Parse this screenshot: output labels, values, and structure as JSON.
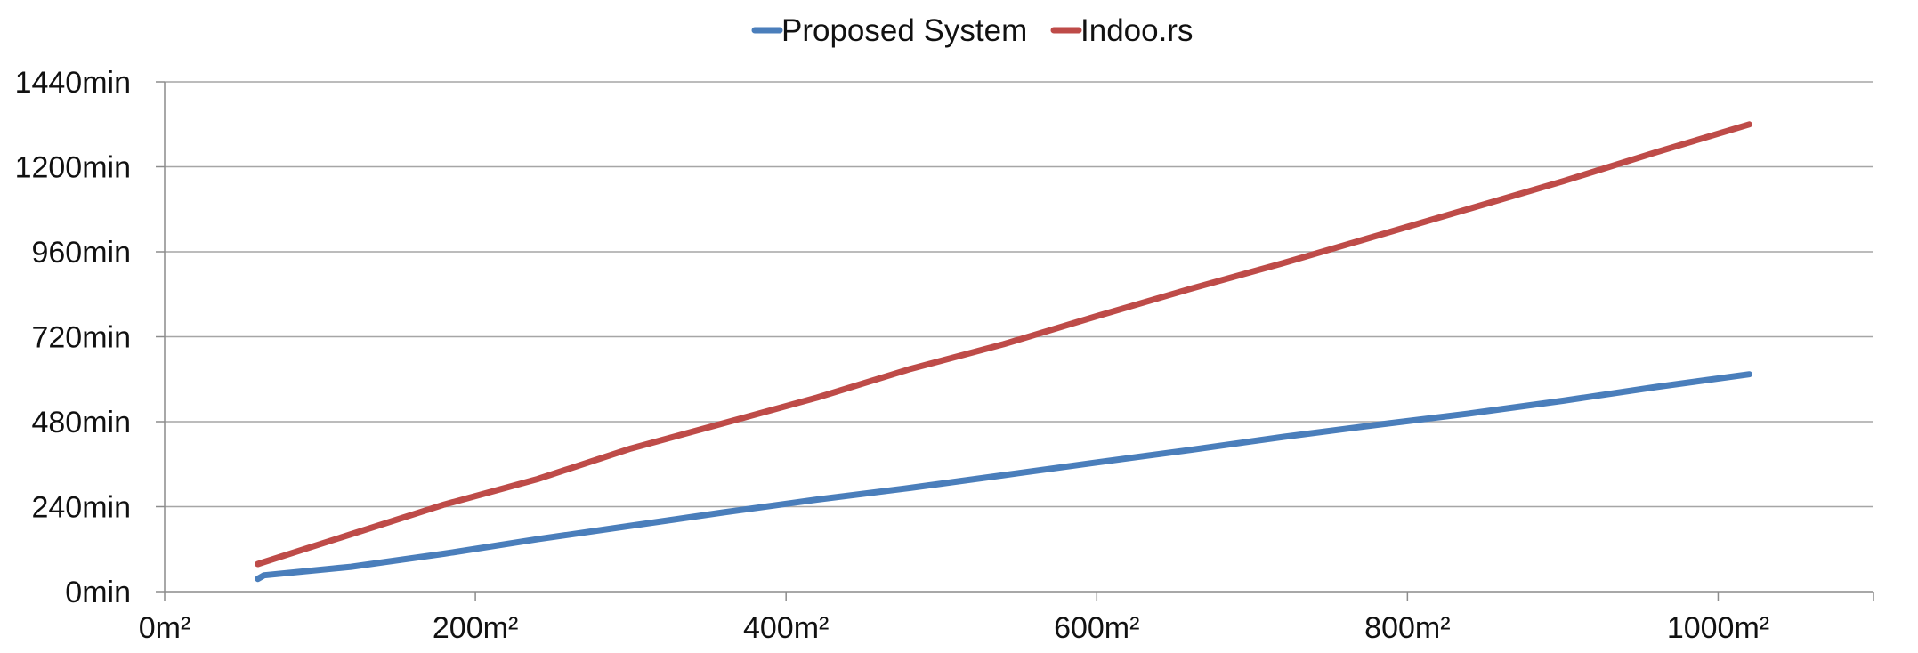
{
  "chart_data": {
    "type": "line",
    "title": "",
    "xlabel": "",
    "ylabel": "",
    "xlim": [
      0,
      1100
    ],
    "ylim": [
      0,
      1440
    ],
    "grid": true,
    "legend_position": "top-center",
    "x_ticks": [
      {
        "value": 0,
        "label": "0m²"
      },
      {
        "value": 200,
        "label": "200m²"
      },
      {
        "value": 400,
        "label": "400m²"
      },
      {
        "value": 600,
        "label": "600m²"
      },
      {
        "value": 800,
        "label": "800m²"
      },
      {
        "value": 1000,
        "label": "1000m²"
      }
    ],
    "y_ticks": [
      {
        "value": 0,
        "label": "0min"
      },
      {
        "value": 240,
        "label": "240min"
      },
      {
        "value": 480,
        "label": "480min"
      },
      {
        "value": 720,
        "label": "720min"
      },
      {
        "value": 960,
        "label": "960min"
      },
      {
        "value": 1200,
        "label": "1200min"
      },
      {
        "value": 1440,
        "label": "1440min"
      }
    ],
    "series": [
      {
        "name": "Proposed System",
        "color": "#4a7ebb",
        "points": [
          [
            60,
            36
          ],
          [
            64,
            46
          ],
          [
            120,
            70
          ],
          [
            180,
            107
          ],
          [
            240,
            148
          ],
          [
            300,
            186
          ],
          [
            360,
            224
          ],
          [
            420,
            260
          ],
          [
            480,
            293
          ],
          [
            540,
            329
          ],
          [
            600,
            365
          ],
          [
            660,
            400
          ],
          [
            720,
            437
          ],
          [
            780,
            471
          ],
          [
            840,
            503
          ],
          [
            900,
            539
          ],
          [
            960,
            578
          ],
          [
            1020,
            614
          ]
        ]
      },
      {
        "name": "Indoo.rs",
        "color": "#be4b48",
        "points": [
          [
            60,
            78
          ],
          [
            120,
            162
          ],
          [
            180,
            246
          ],
          [
            240,
            318
          ],
          [
            300,
            404
          ],
          [
            360,
            476
          ],
          [
            420,
            548
          ],
          [
            480,
            629
          ],
          [
            540,
            699
          ],
          [
            600,
            778
          ],
          [
            660,
            855
          ],
          [
            720,
            928
          ],
          [
            780,
            1005
          ],
          [
            840,
            1082
          ],
          [
            900,
            1159
          ],
          [
            960,
            1241
          ],
          [
            1020,
            1320
          ]
        ]
      }
    ]
  }
}
